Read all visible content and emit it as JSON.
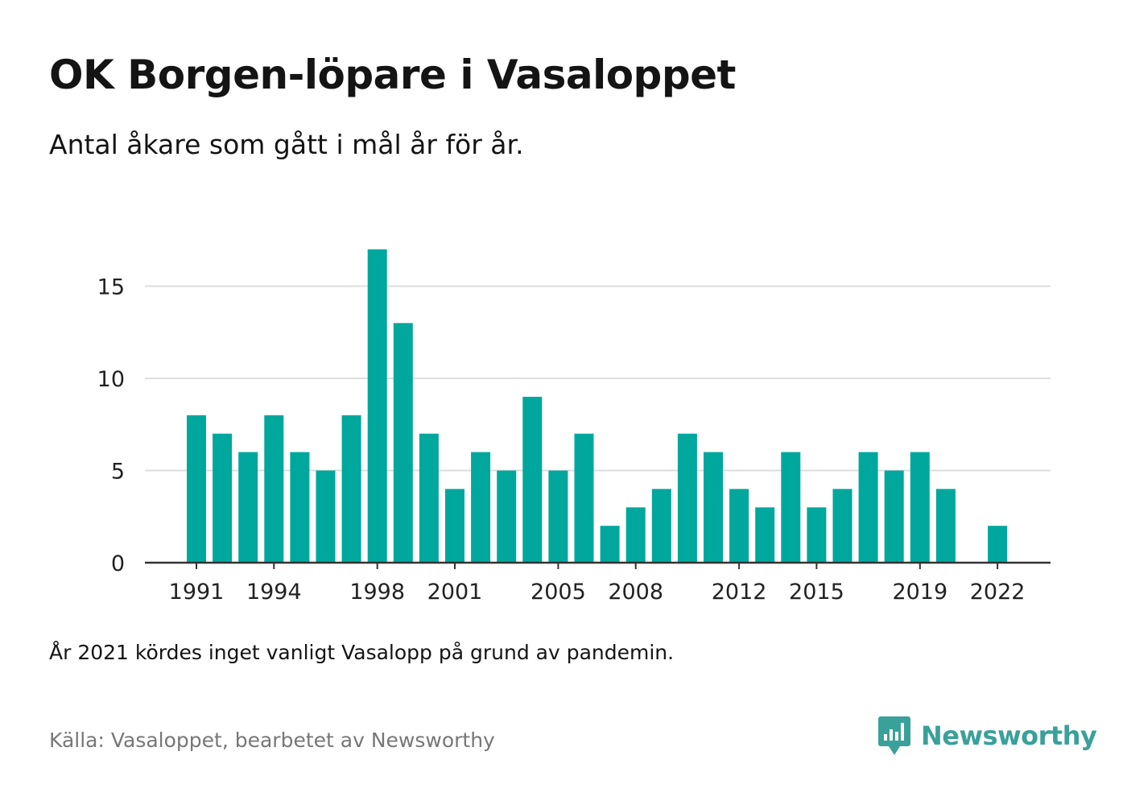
{
  "title": "OK Borgen-löpare i Vasaloppet",
  "subtitle": "Antal åkare som gått i mål år för år.",
  "note": "År 2021 kördes inget vanligt Vasalopp på grund av pandemin.",
  "source": "Källa: Vasaloppet, bearbetet av Newsworthy",
  "brand": {
    "name": "Newsworthy",
    "icon": "newsworthy-chat-chart-icon",
    "color": "#3aa09a"
  },
  "chart_data": {
    "type": "bar",
    "categories": [
      1991,
      1992,
      1993,
      1994,
      1995,
      1996,
      1997,
      1998,
      1999,
      2000,
      2001,
      2002,
      2003,
      2004,
      2005,
      2006,
      2007,
      2008,
      2009,
      2010,
      2011,
      2012,
      2013,
      2014,
      2015,
      2016,
      2017,
      2018,
      2019,
      2020,
      2021,
      2022
    ],
    "values": [
      8,
      7,
      6,
      8,
      6,
      5,
      8,
      17,
      13,
      7,
      4,
      6,
      5,
      9,
      5,
      7,
      2,
      3,
      4,
      7,
      6,
      4,
      3,
      6,
      3,
      4,
      6,
      5,
      6,
      4,
      0,
      2
    ],
    "x_tick_labels": [
      "1991",
      "1994",
      "1998",
      "2001",
      "2005",
      "2008",
      "2012",
      "2015",
      "2019",
      "2022"
    ],
    "y_ticks": [
      0,
      5,
      10,
      15
    ],
    "ylim": [
      0,
      17
    ],
    "xlabel": "",
    "ylabel": "",
    "grid": true,
    "bar_color": "#00a79d",
    "grid_color": "#dddddd",
    "axis_color": "#333333"
  }
}
